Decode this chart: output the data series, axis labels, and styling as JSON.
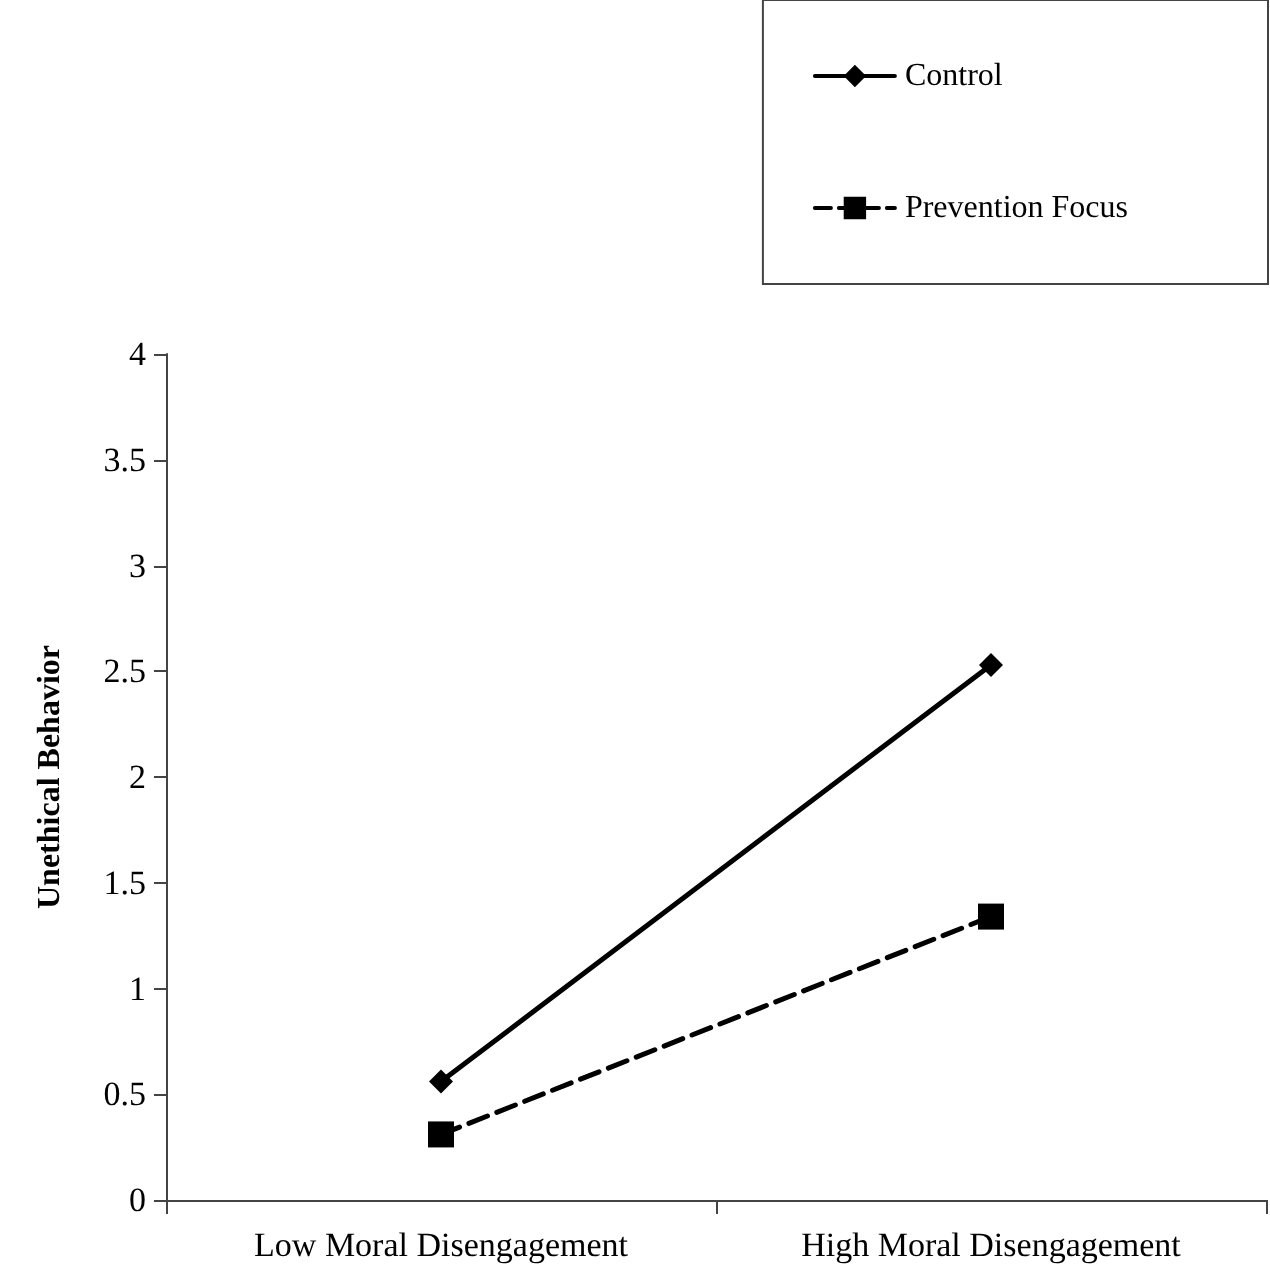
{
  "chart_data": {
    "type": "line",
    "ylabel": "Unethical Behavior",
    "categories": [
      "Low Moral Disengagement",
      "High Moral Disengagement"
    ],
    "series": [
      {
        "name": "Control",
        "color": "#000000",
        "values": [
          0.56,
          2.53
        ],
        "marker": "diamond",
        "line_style": "solid"
      },
      {
        "name": "Prevention Focus",
        "color": "#000000",
        "values": [
          0.31,
          1.34
        ],
        "marker": "square",
        "line_style": "dashed"
      }
    ],
    "ylim": [
      0,
      4
    ],
    "yticks": [
      0,
      0.5,
      1,
      1.5,
      2,
      2.5,
      3,
      3.5,
      4
    ],
    "grid": false,
    "legend": "top right"
  }
}
